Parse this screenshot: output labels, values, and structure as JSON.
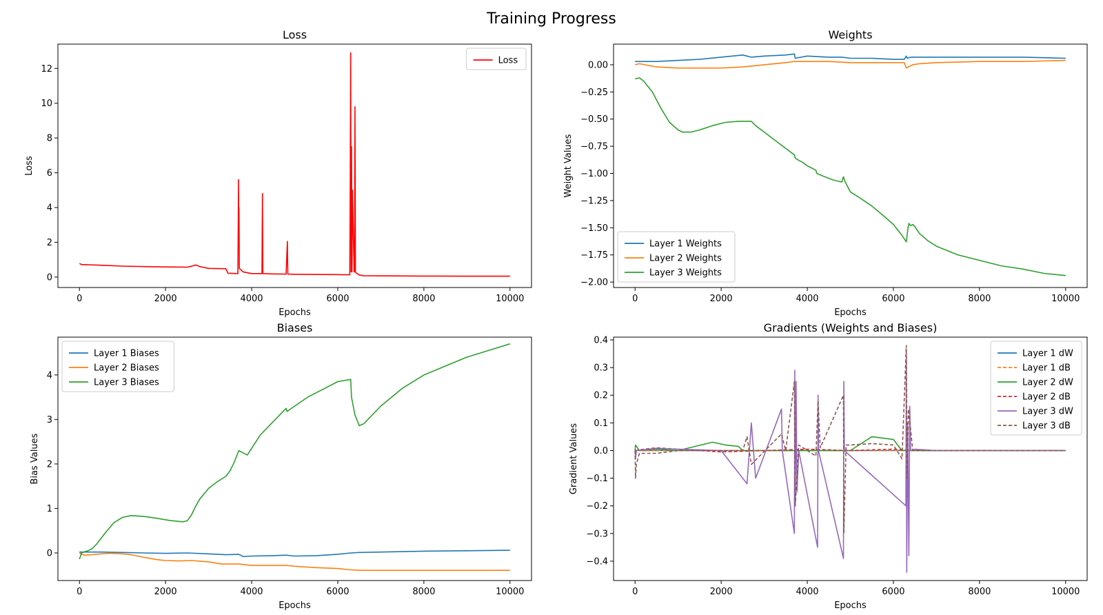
{
  "figure": {
    "suptitle": "Training Progress"
  },
  "chart_data": [
    {
      "id": "loss",
      "type": "line",
      "title": "Loss",
      "xlabel": "Epochs",
      "ylabel": "Loss",
      "xlim": [
        -500,
        10500
      ],
      "ylim": [
        -0.6,
        13.4
      ],
      "xticks": [
        0,
        2000,
        4000,
        6000,
        8000,
        10000
      ],
      "xtick_labels": [
        "0",
        "2000",
        "4000",
        "6000",
        "8000",
        "10000"
      ],
      "yticks": [
        0,
        2,
        4,
        6,
        8,
        10,
        12
      ],
      "ytick_labels": [
        "0",
        "2",
        "4",
        "6",
        "8",
        "10",
        "12"
      ],
      "legend": "upper right",
      "series": [
        {
          "name": "Loss",
          "color": "#ff0000",
          "dash": false,
          "x": [
            0,
            50,
            500,
            1000,
            1500,
            2000,
            2500,
            2600,
            2700,
            2800,
            2900,
            3000,
            3400,
            3450,
            3680,
            3695,
            3700,
            3705,
            3715,
            3800,
            4000,
            4240,
            4250,
            4260,
            4500,
            4800,
            4830,
            4840,
            4850,
            5000,
            5500,
            6000,
            6280,
            6290,
            6300,
            6310,
            6315,
            6320,
            6330,
            6340,
            6380,
            6390,
            6400,
            6410,
            6420,
            6450,
            6500,
            6600,
            7000,
            8000,
            9000,
            10000
          ],
          "y": [
            0.78,
            0.72,
            0.68,
            0.63,
            0.6,
            0.58,
            0.57,
            0.62,
            0.7,
            0.6,
            0.55,
            0.5,
            0.48,
            0.22,
            0.2,
            5.6,
            3.0,
            4.0,
            0.5,
            0.3,
            0.2,
            0.2,
            4.8,
            0.2,
            0.18,
            0.17,
            2.05,
            0.18,
            0.17,
            0.16,
            0.15,
            0.14,
            0.13,
            5.6,
            12.9,
            0.3,
            6.0,
            7.5,
            0.3,
            5.0,
            0.3,
            0.3,
            9.8,
            0.3,
            0.25,
            0.2,
            0.12,
            0.08,
            0.07,
            0.06,
            0.05,
            0.05
          ]
        }
      ]
    },
    {
      "id": "weights",
      "type": "line",
      "title": "Weights",
      "xlabel": "Epochs",
      "ylabel": "Weight Values",
      "xlim": [
        -500,
        10500
      ],
      "ylim": [
        -2.05,
        0.19
      ],
      "xticks": [
        0,
        2000,
        4000,
        6000,
        8000,
        10000
      ],
      "xtick_labels": [
        "0",
        "2000",
        "4000",
        "6000",
        "8000",
        "10000"
      ],
      "yticks": [
        0.0,
        -0.25,
        -0.5,
        -0.75,
        -1.0,
        -1.25,
        -1.5,
        -1.75,
        -2.0
      ],
      "ytick_labels": [
        "0.00",
        "−0.25",
        "−0.50",
        "−0.75",
        "−1.00",
        "−1.25",
        "−1.50",
        "−1.75",
        "−2.00"
      ],
      "legend": "lower left",
      "series": [
        {
          "name": "Layer 1 Weights",
          "color": "#1f77b4",
          "dash": false,
          "x": [
            0,
            500,
            1000,
            1500,
            2000,
            2500,
            2700,
            3000,
            3500,
            3700,
            3720,
            4000,
            4500,
            4800,
            5000,
            5500,
            6000,
            6250,
            6300,
            6320,
            6400,
            6500,
            7000,
            8000,
            9000,
            10000
          ],
          "y": [
            0.03,
            0.03,
            0.04,
            0.05,
            0.07,
            0.09,
            0.07,
            0.08,
            0.09,
            0.1,
            0.06,
            0.08,
            0.07,
            0.07,
            0.06,
            0.06,
            0.05,
            0.05,
            0.08,
            0.06,
            0.07,
            0.07,
            0.07,
            0.07,
            0.07,
            0.06
          ]
        },
        {
          "name": "Layer 2 Weights",
          "color": "#ff7f0e",
          "dash": false,
          "x": [
            0,
            100,
            500,
            1000,
            1500,
            2000,
            2500,
            3000,
            3500,
            3700,
            4000,
            4500,
            5000,
            5500,
            6000,
            6250,
            6300,
            6350,
            6450,
            6600,
            7000,
            8000,
            9000,
            10000
          ],
          "y": [
            0.0,
            0.01,
            -0.02,
            -0.03,
            -0.03,
            -0.03,
            -0.02,
            0.0,
            0.02,
            0.03,
            0.03,
            0.03,
            0.02,
            0.02,
            0.02,
            0.02,
            -0.03,
            -0.02,
            0.0,
            0.01,
            0.02,
            0.03,
            0.03,
            0.04
          ]
        },
        {
          "name": "Layer 3 Weights",
          "color": "#2ca02c",
          "dash": false,
          "x": [
            0,
            100,
            200,
            400,
            600,
            800,
            1000,
            1100,
            1300,
            1500,
            1800,
            2100,
            2400,
            2700,
            2800,
            3000,
            3200,
            3400,
            3600,
            3700,
            3720,
            3800,
            3900,
            4000,
            4200,
            4220,
            4400,
            4600,
            4800,
            4840,
            4870,
            5000,
            5200,
            5500,
            5800,
            6000,
            6200,
            6300,
            6340,
            6360,
            6400,
            6450,
            6500,
            6600,
            6800,
            7000,
            7500,
            8000,
            8500,
            9000,
            9500,
            10000
          ],
          "y": [
            -0.13,
            -0.12,
            -0.15,
            -0.25,
            -0.4,
            -0.53,
            -0.6,
            -0.62,
            -0.62,
            -0.6,
            -0.56,
            -0.53,
            -0.52,
            -0.52,
            -0.56,
            -0.62,
            -0.68,
            -0.74,
            -0.8,
            -0.83,
            -0.86,
            -0.88,
            -0.9,
            -0.93,
            -0.97,
            -1.0,
            -1.03,
            -1.06,
            -1.08,
            -1.03,
            -1.07,
            -1.17,
            -1.22,
            -1.3,
            -1.4,
            -1.47,
            -1.57,
            -1.63,
            -1.5,
            -1.46,
            -1.48,
            -1.47,
            -1.49,
            -1.55,
            -1.62,
            -1.67,
            -1.75,
            -1.8,
            -1.85,
            -1.88,
            -1.92,
            -1.94
          ]
        }
      ]
    },
    {
      "id": "biases",
      "type": "line",
      "title": "Biases",
      "xlabel": "Epochs",
      "ylabel": "Bias Values",
      "xlim": [
        -500,
        10500
      ],
      "ylim": [
        -0.62,
        4.85
      ],
      "xticks": [
        0,
        2000,
        4000,
        6000,
        8000,
        10000
      ],
      "xtick_labels": [
        "0",
        "2000",
        "4000",
        "6000",
        "8000",
        "10000"
      ],
      "yticks": [
        0,
        1,
        2,
        3,
        4
      ],
      "ytick_labels": [
        "0",
        "1",
        "2",
        "3",
        "4"
      ],
      "legend": "upper left",
      "series": [
        {
          "name": "Layer 1 Biases",
          "color": "#1f77b4",
          "dash": false,
          "x": [
            0,
            500,
            1000,
            1500,
            2000,
            2500,
            3000,
            3400,
            3700,
            3800,
            4000,
            4500,
            4800,
            5000,
            5500,
            6000,
            6300,
            6500,
            7000,
            8000,
            9000,
            10000
          ],
          "y": [
            0.02,
            0.02,
            0.01,
            0.0,
            -0.01,
            0.0,
            -0.02,
            -0.04,
            -0.03,
            -0.08,
            -0.07,
            -0.06,
            -0.05,
            -0.07,
            -0.06,
            -0.03,
            0.0,
            0.01,
            0.02,
            0.04,
            0.05,
            0.06
          ]
        },
        {
          "name": "Layer 2 Biases",
          "color": "#ff7f0e",
          "dash": false,
          "x": [
            0,
            100,
            300,
            500,
            700,
            1000,
            1200,
            1500,
            1800,
            2000,
            2300,
            2600,
            3000,
            3300,
            3700,
            4000,
            4500,
            4800,
            5000,
            5500,
            6000,
            6300,
            6500,
            7000,
            8000,
            9000,
            10000
          ],
          "y": [
            0.0,
            -0.05,
            -0.04,
            -0.02,
            -0.01,
            -0.02,
            -0.04,
            -0.1,
            -0.15,
            -0.17,
            -0.18,
            -0.17,
            -0.2,
            -0.25,
            -0.25,
            -0.28,
            -0.28,
            -0.28,
            -0.3,
            -0.33,
            -0.35,
            -0.38,
            -0.39,
            -0.39,
            -0.39,
            -0.39,
            -0.39
          ]
        },
        {
          "name": "Layer 3 Biases",
          "color": "#2ca02c",
          "dash": false,
          "x": [
            0,
            50,
            100,
            200,
            300,
            400,
            600,
            800,
            1000,
            1200,
            1500,
            1800,
            2100,
            2400,
            2500,
            2600,
            2700,
            2800,
            3000,
            3200,
            3400,
            3500,
            3600,
            3700,
            3800,
            3900,
            4000,
            4200,
            4500,
            4800,
            4820,
            5000,
            5300,
            5600,
            6000,
            6300,
            6320,
            6400,
            6500,
            6600,
            7000,
            7500,
            8000,
            8500,
            9000,
            9500,
            10000
          ],
          "y": [
            -0.14,
            0.0,
            0.02,
            0.05,
            0.1,
            0.2,
            0.45,
            0.68,
            0.8,
            0.84,
            0.82,
            0.78,
            0.73,
            0.7,
            0.72,
            0.85,
            1.05,
            1.22,
            1.45,
            1.6,
            1.72,
            1.85,
            2.05,
            2.3,
            2.25,
            2.2,
            2.35,
            2.65,
            2.95,
            3.25,
            3.18,
            3.3,
            3.5,
            3.65,
            3.85,
            3.9,
            3.5,
            3.1,
            2.86,
            2.9,
            3.3,
            3.7,
            4.0,
            4.2,
            4.4,
            4.55,
            4.7
          ]
        }
      ]
    },
    {
      "id": "gradients",
      "type": "line",
      "title": "Gradients (Weights and Biases)",
      "xlabel": "Epochs",
      "ylabel": "Gradient Values",
      "xlim": [
        -500,
        10500
      ],
      "ylim": [
        -0.47,
        0.41
      ],
      "xticks": [
        0,
        2000,
        4000,
        6000,
        8000,
        10000
      ],
      "xtick_labels": [
        "0",
        "2000",
        "4000",
        "6000",
        "8000",
        "10000"
      ],
      "yticks": [
        0.4,
        0.3,
        0.2,
        0.1,
        0.0,
        -0.1,
        -0.2,
        -0.3,
        -0.4
      ],
      "ytick_labels": [
        "0.4",
        "0.3",
        "0.2",
        "0.1",
        "0.0",
        "−0.1",
        "−0.2",
        "−0.3",
        "−0.4"
      ],
      "legend": "upper right",
      "series": [
        {
          "name": "Layer 1 dW",
          "color": "#1f77b4",
          "dash": false,
          "x": [
            0,
            1000,
            2000,
            3000,
            4000,
            5000,
            6000,
            7000,
            8000,
            9000,
            10000
          ],
          "y": [
            0.0,
            0.0,
            0.0,
            0.0,
            0.0,
            0.0,
            0.0,
            0.0,
            0.0,
            0.0,
            0.0
          ]
        },
        {
          "name": "Layer 1 dB",
          "color": "#ff7f0e",
          "dash": true,
          "x": [
            0,
            1000,
            2000,
            3000,
            4000,
            5000,
            6000,
            7000,
            8000,
            9000,
            10000
          ],
          "y": [
            0.0,
            0.0,
            0.0,
            0.0,
            0.0,
            0.0,
            0.0,
            0.0,
            0.0,
            0.0,
            0.0
          ]
        },
        {
          "name": "Layer 2 dW",
          "color": "#2ca02c",
          "dash": false,
          "x": [
            0,
            10,
            100,
            500,
            1000,
            1400,
            1800,
            2100,
            2400,
            2500,
            3000,
            3500,
            4000,
            4600,
            4800,
            5000,
            5500,
            6000,
            6200,
            6500,
            7000,
            8000,
            9000,
            10000
          ],
          "y": [
            0.0,
            0.02,
            0.0,
            0.005,
            0.0,
            0.015,
            0.03,
            0.02,
            0.015,
            0.0,
            0.0,
            0.0,
            0.0,
            0.0,
            0.0,
            0.0,
            0.05,
            0.04,
            0.0,
            0.0,
            0.0,
            0.0,
            0.0,
            0.0
          ]
        },
        {
          "name": "Layer 2 dB",
          "color": "#d62728",
          "dash": true,
          "x": [
            0,
            200,
            500,
            1000,
            1500,
            2000,
            3000,
            4000,
            5000,
            6000,
            6500,
            7000,
            8000,
            9000,
            10000
          ],
          "y": [
            0.0,
            0.005,
            0.01,
            0.005,
            0.0,
            -0.005,
            0.0,
            0.005,
            0.0,
            0.005,
            0.0,
            0.0,
            0.0,
            0.0,
            0.0
          ]
        },
        {
          "name": "Layer 3 dW",
          "color": "#9467bd",
          "dash": false,
          "x": [
            0,
            10,
            30,
            500,
            1000,
            2000,
            2600,
            2700,
            2800,
            3400,
            3420,
            3700,
            3710,
            3720,
            3740,
            3760,
            3800,
            4240,
            4250,
            4260,
            4840,
            4850,
            4860,
            6290,
            6300,
            6310,
            6330,
            6360,
            6380,
            6400,
            6500,
            7000,
            8000,
            9000,
            10000
          ],
          "y": [
            0.0,
            -0.03,
            0.0,
            0.008,
            0.005,
            0.0,
            -0.12,
            0.1,
            -0.1,
            0.15,
            0.0,
            -0.3,
            0.29,
            -0.2,
            0.25,
            -0.15,
            0.0,
            -0.35,
            0.2,
            0.0,
            -0.39,
            0.25,
            0.0,
            -0.2,
            0.36,
            -0.44,
            0.1,
            -0.38,
            0.16,
            0.0,
            0.005,
            0.0,
            0.0,
            0.0,
            0.0
          ]
        },
        {
          "name": "Layer 3 dB",
          "color": "#8c564b",
          "dash": true,
          "x": [
            0,
            10,
            30,
            100,
            500,
            1000,
            1500,
            2000,
            2500,
            2600,
            2700,
            3400,
            3500,
            3700,
            3720,
            3800,
            4200,
            4250,
            4300,
            4840,
            4850,
            4900,
            5000,
            5500,
            6000,
            6200,
            6300,
            6320,
            6350,
            6450,
            6500,
            7000,
            8000,
            9000,
            10000
          ],
          "y": [
            0.0,
            -0.1,
            -0.05,
            -0.01,
            -0.01,
            0.0,
            0.0,
            0.0,
            0.0,
            0.05,
            -0.05,
            0.06,
            0.0,
            0.25,
            -0.2,
            0.02,
            -0.02,
            0.18,
            0.01,
            0.2,
            -0.3,
            0.02,
            0.02,
            0.025,
            0.02,
            -0.03,
            0.38,
            -0.1,
            0.15,
            0.0,
            0.0,
            0.0,
            0.0,
            0.0,
            0.0
          ]
        }
      ]
    }
  ]
}
